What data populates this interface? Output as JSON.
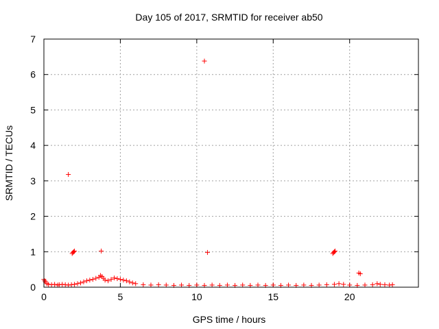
{
  "chart_data": {
    "type": "scatter",
    "title": "Day 105 of 2017, SRMTID for receiver ab50",
    "xlabel": "GPS time / hours",
    "ylabel": "SRMTID / TECUs",
    "xlim": [
      0,
      24.5
    ],
    "ylim": [
      0,
      7
    ],
    "xticks": [
      0,
      5,
      10,
      15,
      20
    ],
    "xtick_labels": [
      "0",
      "5",
      "10",
      "15",
      "20"
    ],
    "yticks": [
      0,
      1,
      2,
      3,
      4,
      5,
      6,
      7
    ],
    "ytick_labels": [
      "0",
      "1",
      "2",
      "3",
      "4",
      "5",
      "6",
      "7"
    ],
    "grid": true,
    "marker": "+",
    "color": "#ff0000",
    "series": [
      {
        "name": "SRMTID",
        "x": [
          0.0,
          0.05,
          0.1,
          0.2,
          0.3,
          0.5,
          0.7,
          0.9,
          1.0,
          1.2,
          1.4,
          1.6,
          1.8,
          2.0,
          2.2,
          2.4,
          2.6,
          2.8,
          3.0,
          3.2,
          3.4,
          3.6,
          3.7,
          3.8,
          3.9,
          4.0,
          4.2,
          4.4,
          4.6,
          4.8,
          5.0,
          5.2,
          5.4,
          5.6,
          5.8,
          6.0,
          6.5,
          7.0,
          7.5,
          8.0,
          8.5,
          9.0,
          9.5,
          10.0,
          10.5,
          11.0,
          11.5,
          12.0,
          12.5,
          13.0,
          13.5,
          14.0,
          14.5,
          15.0,
          15.5,
          16.0,
          16.5,
          17.0,
          17.5,
          18.0,
          18.5,
          19.0,
          19.3,
          19.6,
          20.0,
          20.5,
          21.0,
          21.5,
          21.8,
          22.0,
          22.3,
          22.6,
          22.8,
          1.6,
          1.85,
          1.9,
          1.95,
          2.0,
          3.75,
          10.5,
          10.7,
          18.9,
          18.95,
          19.0,
          19.05,
          20.6,
          20.7
        ],
        "y": [
          0.22,
          0.18,
          0.15,
          0.1,
          0.08,
          0.07,
          0.08,
          0.06,
          0.07,
          0.08,
          0.07,
          0.06,
          0.07,
          0.08,
          0.1,
          0.12,
          0.15,
          0.18,
          0.2,
          0.22,
          0.25,
          0.28,
          0.33,
          0.3,
          0.25,
          0.2,
          0.18,
          0.22,
          0.26,
          0.24,
          0.22,
          0.2,
          0.18,
          0.15,
          0.12,
          0.1,
          0.07,
          0.06,
          0.07,
          0.06,
          0.05,
          0.06,
          0.05,
          0.06,
          0.05,
          0.06,
          0.05,
          0.06,
          0.05,
          0.06,
          0.05,
          0.06,
          0.05,
          0.06,
          0.05,
          0.06,
          0.05,
          0.06,
          0.05,
          0.06,
          0.07,
          0.08,
          0.1,
          0.08,
          0.06,
          0.05,
          0.06,
          0.07,
          0.1,
          0.08,
          0.07,
          0.06,
          0.07,
          3.18,
          0.95,
          0.98,
          1.0,
          1.02,
          1.02,
          6.38,
          0.98,
          0.95,
          0.98,
          1.0,
          1.02,
          0.4,
          0.38
        ]
      }
    ]
  }
}
